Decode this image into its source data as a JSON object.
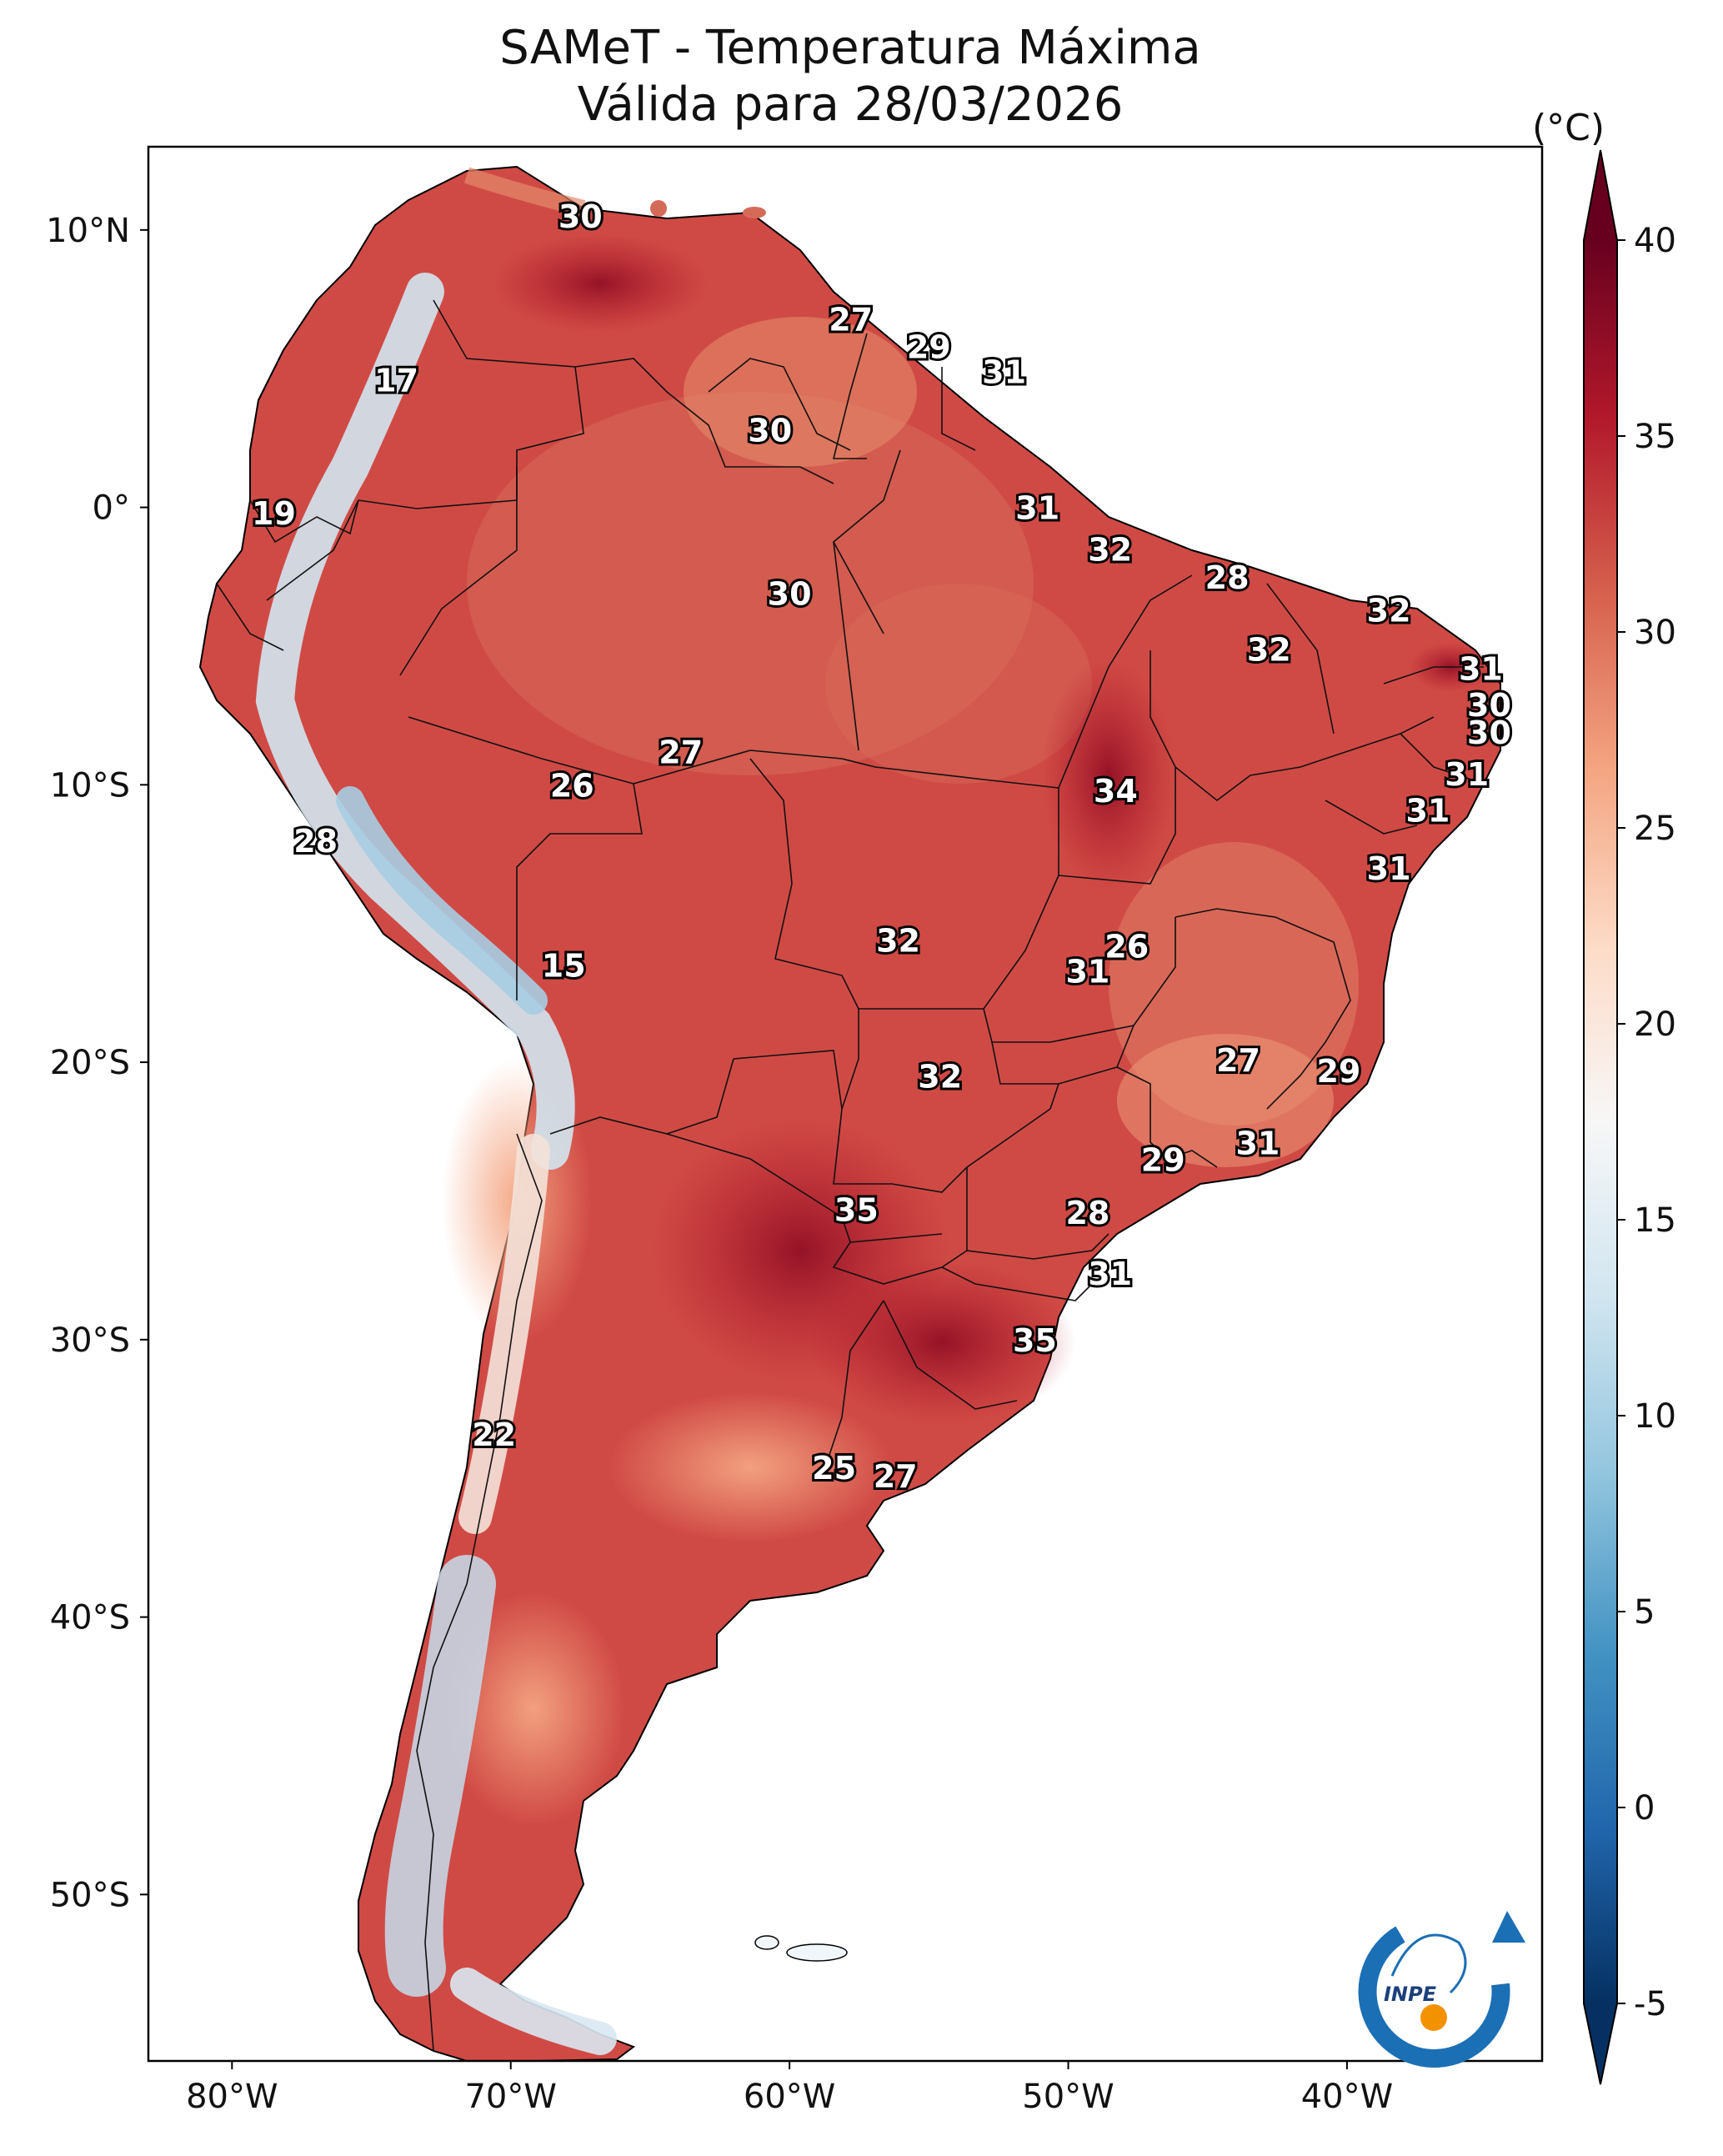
{
  "title": "SAMeT - Temperatura Máxima",
  "subtitle": "Válida para 28/03/2026",
  "map_extent": {
    "lon": [
      -83,
      -33
    ],
    "lat": [
      -56,
      13
    ]
  },
  "lon_ticks": [
    {
      "value": -80,
      "label": "80°W"
    },
    {
      "value": -70,
      "label": "70°W"
    },
    {
      "value": -60,
      "label": "60°W"
    },
    {
      "value": -50,
      "label": "50°W"
    },
    {
      "value": -40,
      "label": "40°W"
    }
  ],
  "lat_ticks": [
    {
      "value": 10,
      "label": "10°N"
    },
    {
      "value": 0,
      "label": "0°"
    },
    {
      "value": -10,
      "label": "10°S"
    },
    {
      "value": -20,
      "label": "20°S"
    },
    {
      "value": -30,
      "label": "30°S"
    },
    {
      "value": -40,
      "label": "40°S"
    },
    {
      "value": -50,
      "label": "50°S"
    }
  ],
  "colorbar": {
    "unit": "(°C)",
    "min": -5,
    "max": 40,
    "ticks": [
      {
        "value": 40,
        "label": "40"
      },
      {
        "value": 35,
        "label": "35"
      },
      {
        "value": 30,
        "label": "30"
      },
      {
        "value": 25,
        "label": "25"
      },
      {
        "value": 20,
        "label": "20"
      },
      {
        "value": 15,
        "label": "15"
      },
      {
        "value": 10,
        "label": "10"
      },
      {
        "value": 5,
        "label": "5"
      },
      {
        "value": 0,
        "label": "0"
      },
      {
        "value": -5,
        "label": "-5"
      }
    ],
    "colors": [
      "#053061",
      "#2166ac",
      "#4393c3",
      "#92c5de",
      "#d1e5f0",
      "#f7f7f7",
      "#fddbc7",
      "#f4a582",
      "#d6604d",
      "#b2182b",
      "#67001f"
    ]
  },
  "city_values": [
    {
      "lon": -67.5,
      "lat": 10.5,
      "value": "30"
    },
    {
      "lon": -57.8,
      "lat": 6.8,
      "value": "27"
    },
    {
      "lon": -55.0,
      "lat": 5.8,
      "value": "29"
    },
    {
      "lon": -52.3,
      "lat": 4.9,
      "value": "31"
    },
    {
      "lon": -74.1,
      "lat": 4.6,
      "value": "17"
    },
    {
      "lon": -60.7,
      "lat": 2.8,
      "value": "30"
    },
    {
      "lon": -78.5,
      "lat": -0.2,
      "value": "19"
    },
    {
      "lon": -51.1,
      "lat": 0.0,
      "value": "31"
    },
    {
      "lon": -48.5,
      "lat": -1.5,
      "value": "32"
    },
    {
      "lon": -60.0,
      "lat": -3.1,
      "value": "30"
    },
    {
      "lon": -44.3,
      "lat": -2.5,
      "value": "28"
    },
    {
      "lon": -38.5,
      "lat": -3.7,
      "value": "32"
    },
    {
      "lon": -42.8,
      "lat": -5.1,
      "value": "32"
    },
    {
      "lon": -35.2,
      "lat": -5.8,
      "value": "31"
    },
    {
      "lon": -34.9,
      "lat": -7.1,
      "value": "30"
    },
    {
      "lon": -34.9,
      "lat": -8.1,
      "value": "30"
    },
    {
      "lon": -63.9,
      "lat": -8.8,
      "value": "27"
    },
    {
      "lon": -35.7,
      "lat": -9.6,
      "value": "31"
    },
    {
      "lon": -48.3,
      "lat": -10.2,
      "value": "34"
    },
    {
      "lon": -67.8,
      "lat": -10.0,
      "value": "26"
    },
    {
      "lon": -37.1,
      "lat": -10.9,
      "value": "31"
    },
    {
      "lon": -77.0,
      "lat": -12.0,
      "value": "28"
    },
    {
      "lon": -38.5,
      "lat": -13.0,
      "value": "31"
    },
    {
      "lon": -56.1,
      "lat": -15.6,
      "value": "32"
    },
    {
      "lon": -47.9,
      "lat": -15.8,
      "value": "26"
    },
    {
      "lon": -68.1,
      "lat": -16.5,
      "value": "15"
    },
    {
      "lon": -49.3,
      "lat": -16.7,
      "value": "31"
    },
    {
      "lon": -43.9,
      "lat": -19.9,
      "value": "27"
    },
    {
      "lon": -40.3,
      "lat": -20.3,
      "value": "29"
    },
    {
      "lon": -54.6,
      "lat": -20.5,
      "value": "32"
    },
    {
      "lon": -43.2,
      "lat": -22.9,
      "value": "31"
    },
    {
      "lon": -46.6,
      "lat": -23.5,
      "value": "29"
    },
    {
      "lon": -57.6,
      "lat": -25.3,
      "value": "35"
    },
    {
      "lon": -49.3,
      "lat": -25.4,
      "value": "28"
    },
    {
      "lon": -48.5,
      "lat": -27.6,
      "value": "31"
    },
    {
      "lon": -51.2,
      "lat": -30.0,
      "value": "35"
    },
    {
      "lon": -70.6,
      "lat": -33.4,
      "value": "22"
    },
    {
      "lon": -58.4,
      "lat": -34.6,
      "value": "25"
    },
    {
      "lon": -56.2,
      "lat": -34.9,
      "value": "27"
    }
  ],
  "logo": {
    "text": "INPE"
  }
}
